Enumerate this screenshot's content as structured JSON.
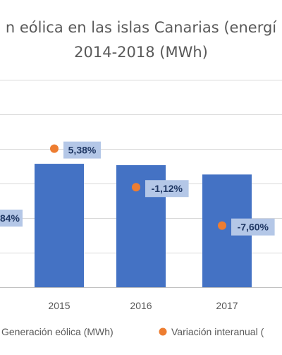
{
  "chart_data": {
    "type": "bar",
    "title": {
      "line1": "n  eólica en las islas Canarias (energí",
      "line2": "2014-2018 (MWh)"
    },
    "categories": [
      "2015",
      "2016",
      "2017"
    ],
    "series": [
      {
        "name": "Generación eólica (MWh)",
        "type": "bar",
        "axis": "left",
        "color": "#4472c4",
        "values": [
          357000,
          353000,
          326000
        ]
      },
      {
        "name": "Variación interanual (",
        "type": "scatter",
        "axis": "right",
        "color": "#ed7d31",
        "values": [
          5.38,
          -1.12,
          -7.6
        ],
        "labels": [
          "5,38%",
          "-1,12%",
          "-7,60%"
        ]
      }
    ],
    "partial_labels": {
      "left_edge": "84%"
    },
    "ylim_left": [
      0,
      600000
    ],
    "ylim_right": [
      -18,
      17
    ],
    "grid": true,
    "legend_position": "bottom"
  }
}
